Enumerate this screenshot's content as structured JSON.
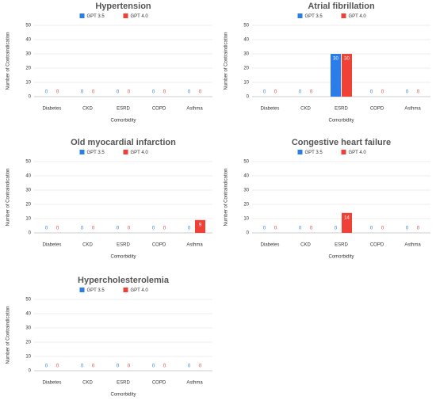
{
  "chart_data": [
    {
      "type": "bar",
      "title": "Hypertension",
      "x_label": "Comorbidity",
      "y_label": "Number of Contraindication",
      "categories": [
        "Diabetes",
        "CKD",
        "ESRD",
        "COPD",
        "Asthma"
      ],
      "series": [
        {
          "name": "GPT 3.5",
          "color": "#2b7de9",
          "values": [
            0,
            0,
            0,
            0,
            0
          ]
        },
        {
          "name": "GPT 4.0",
          "color": "#ef4136",
          "values": [
            0,
            0,
            0,
            0,
            0
          ]
        }
      ],
      "ylim": [
        0,
        50
      ],
      "yticks": [
        0,
        10,
        20,
        30,
        40,
        50
      ],
      "grid": true
    },
    {
      "type": "bar",
      "title": "Atrial fibrillation",
      "x_label": "Comorbidity",
      "y_label": "Number of Contraindication",
      "categories": [
        "Diabetes",
        "CKD",
        "ESRD",
        "COPD",
        "Asthma"
      ],
      "series": [
        {
          "name": "GPT 3.5",
          "color": "#2b7de9",
          "values": [
            0,
            0,
            30,
            0,
            0
          ]
        },
        {
          "name": "GPT 4.0",
          "color": "#ef4136",
          "values": [
            0,
            0,
            30,
            0,
            0
          ]
        }
      ],
      "ylim": [
        0,
        50
      ],
      "yticks": [
        0,
        10,
        20,
        30,
        40,
        50
      ],
      "grid": true
    },
    {
      "type": "bar",
      "title": "Old myocardial infarction",
      "x_label": "Comorbidity",
      "y_label": "Number of Contraindication",
      "categories": [
        "Diabetes",
        "CKD",
        "ESRD",
        "COPD",
        "Asthma"
      ],
      "series": [
        {
          "name": "GPT 3.5",
          "color": "#2b7de9",
          "values": [
            0,
            0,
            0,
            0,
            0
          ]
        },
        {
          "name": "GPT 4.0",
          "color": "#ef4136",
          "values": [
            0,
            0,
            0,
            0,
            9
          ]
        }
      ],
      "ylim": [
        0,
        50
      ],
      "yticks": [
        0,
        10,
        20,
        30,
        40,
        50
      ],
      "grid": true
    },
    {
      "type": "bar",
      "title": "Congestive heart failure",
      "x_label": "Comorbidity",
      "y_label": "Number of Contraindication",
      "categories": [
        "Diabetes",
        "CKD",
        "ESRD",
        "COPD",
        "Asthma"
      ],
      "series": [
        {
          "name": "GPT 3.5",
          "color": "#2b7de9",
          "values": [
            0,
            0,
            0,
            0,
            0
          ]
        },
        {
          "name": "GPT 4.0",
          "color": "#ef4136",
          "values": [
            0,
            0,
            14,
            0,
            0
          ]
        }
      ],
      "ylim": [
        0,
        50
      ],
      "yticks": [
        0,
        10,
        20,
        30,
        40,
        50
      ],
      "grid": true
    },
    {
      "type": "bar",
      "title": "Hypercholesterolemia",
      "x_label": "Comorbidity",
      "y_label": "Number of Contraindication",
      "categories": [
        "Diabetes",
        "CKD",
        "ESRD",
        "COPD",
        "Asthma"
      ],
      "series": [
        {
          "name": "GPT 3.5",
          "color": "#2b7de9",
          "values": [
            0,
            0,
            0,
            0,
            0
          ]
        },
        {
          "name": "GPT 4.0",
          "color": "#ef4136",
          "values": [
            0,
            0,
            0,
            0,
            0
          ]
        }
      ],
      "ylim": [
        0,
        50
      ],
      "yticks": [
        0,
        10,
        20,
        30,
        40,
        50
      ],
      "grid": true
    }
  ]
}
